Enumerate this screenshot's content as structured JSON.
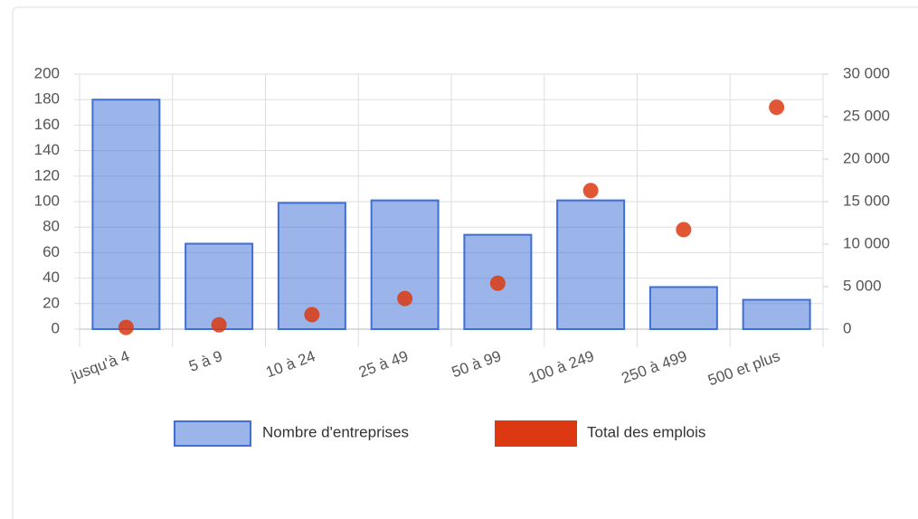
{
  "chart_data": {
    "type": "bar",
    "categories": [
      "jusqu'à 4",
      "5 à 9",
      "10 à 24",
      "25 à 49",
      "50 à 99",
      "100 à 249",
      "250 à 499",
      "500 et plus"
    ],
    "series": [
      {
        "name": "Nombre d'entreprises",
        "type": "bar",
        "color": "#3f6fd6",
        "values": [
          180,
          67,
          99,
          101,
          74,
          101,
          33,
          23
        ]
      },
      {
        "name": "Total des emplois",
        "type": "scatter",
        "axis": "y2",
        "color": "#dc3912",
        "values": [
          200,
          500,
          1700,
          3600,
          5400,
          16300,
          11700,
          26100
        ]
      }
    ],
    "ylim": [
      0,
      200
    ],
    "yticks": [
      0,
      20,
      40,
      60,
      80,
      100,
      120,
      140,
      160,
      180,
      200
    ],
    "y2lim": [
      0,
      30000
    ],
    "y2ticks": [
      {
        "value": 0,
        "label": "0"
      },
      {
        "value": 5000,
        "label": "5 000"
      },
      {
        "value": 10000,
        "label": "10 000"
      },
      {
        "value": 15000,
        "label": "15 000"
      },
      {
        "value": 20000,
        "label": "20 000"
      },
      {
        "value": 25000,
        "label": "25 000"
      },
      {
        "value": 30000,
        "label": "30 000"
      }
    ],
    "grid": true,
    "legend": "bottom"
  }
}
